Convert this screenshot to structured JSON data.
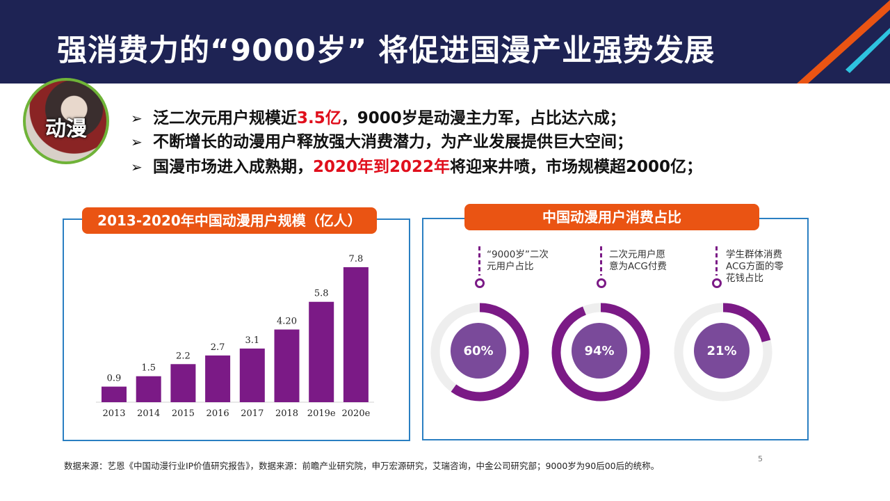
{
  "header": {
    "title": "强消费力的“9000岁” 将促进国漫产业强势发展"
  },
  "avatar": {
    "label": "动漫"
  },
  "bullets": [
    {
      "marker": "➢",
      "before": "泛二次元用户规模近",
      "highlight": "3.5亿",
      "after": "，9000岁是动漫主力军，占比达六成；"
    },
    {
      "marker": "➢",
      "before": "不断增长的动漫用户释放强大消费潜力，为产业发展提供巨大空间；",
      "highlight": "",
      "after": ""
    },
    {
      "marker": "➢",
      "before": "国漫市场进入成熟期，",
      "highlight": "2020年到2022年",
      "after": "将迎来井喷，市场规模超2000亿；"
    }
  ],
  "colors": {
    "header_bg": "#1e2354",
    "accent_orange": "#ea5413",
    "bar_purple": "#7b1a86",
    "highlight_red": "#e00f1c",
    "panel_border": "#2a7fc2",
    "donut_center": "#7a4a9a"
  },
  "chart_data": [
    {
      "type": "bar",
      "title": "2013-2020年中国动漫用户规模（亿人）",
      "categories": [
        "2013",
        "2014",
        "2015",
        "2016",
        "2017",
        "2018",
        "2019e",
        "2020e"
      ],
      "values": [
        0.9,
        1.5,
        2.2,
        2.7,
        3.1,
        4.2,
        5.8,
        7.8
      ],
      "value_labels": [
        "0.9",
        "1.5",
        "2.2",
        "2.7",
        "3.1",
        "4.20",
        "5.8",
        "7.8"
      ],
      "ylim": [
        0,
        7.8
      ],
      "grid": false
    },
    {
      "type": "pie",
      "title": "中国动漫用户消费占比",
      "items": [
        {
          "label": "“9000岁”二次元用户占比",
          "value": 60,
          "text": "60%"
        },
        {
          "label": "二次元用户愿意为ACG付费",
          "value": 94,
          "text": "94%"
        },
        {
          "label": "学生群体消费ACG方面的零花钱占比",
          "value": 21,
          "text": "21%"
        }
      ]
    }
  ],
  "footnote": "数据来源：艺恩《中国动漫行业IP价值研究报告》，数据来源：前瞻产业研究院，申万宏源研究，艾瑞咨询，中金公司研究部；9000岁为90后00后的统称。",
  "page_number": "5"
}
